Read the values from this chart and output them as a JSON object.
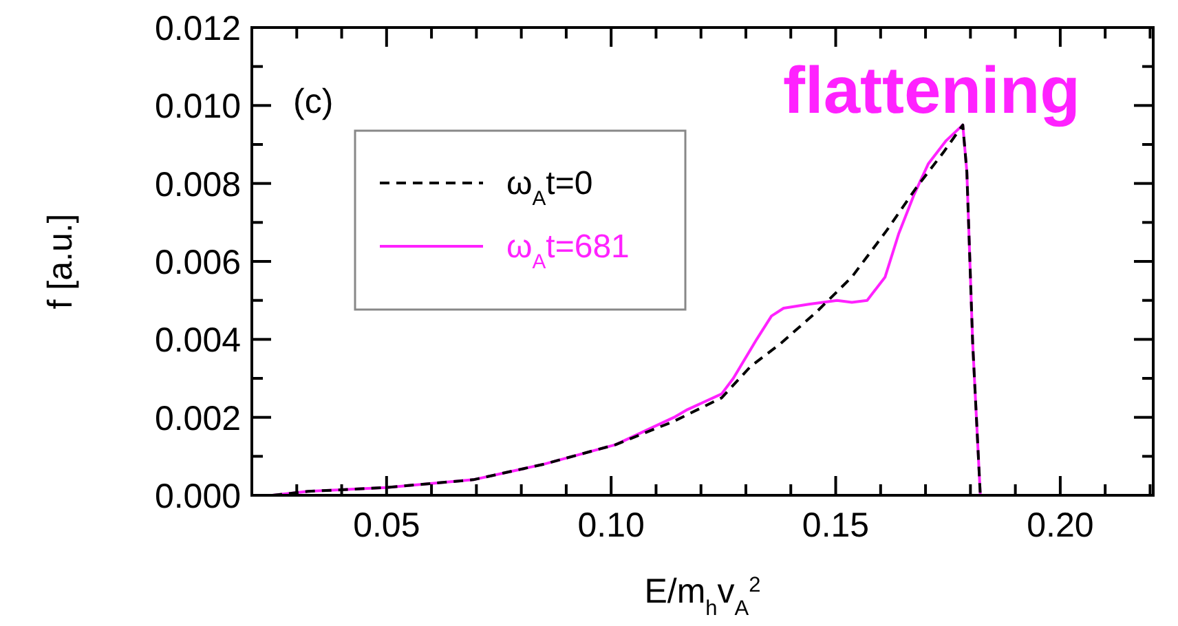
{
  "chart_data": {
    "type": "line",
    "xlabel": "E/m$_{h}$v$_{A}$$^{2}$",
    "ylabel": "f [a.u.]",
    "annotations": [
      "(c)",
      "flattening"
    ],
    "xlim": [
      0.02,
      0.2207
    ],
    "ylim": [
      0,
      0.012
    ],
    "xticks": [
      {
        "value": 0.03,
        "label": null
      },
      {
        "value": 0.04,
        "label": null
      },
      {
        "value": 0.05,
        "label": "0.05"
      },
      {
        "value": 0.06,
        "label": null
      },
      {
        "value": 0.07,
        "label": null
      },
      {
        "value": 0.08,
        "label": null
      },
      {
        "value": 0.09,
        "label": null
      },
      {
        "value": 0.1,
        "label": "0.10"
      },
      {
        "value": 0.11,
        "label": null
      },
      {
        "value": 0.12,
        "label": null
      },
      {
        "value": 0.13,
        "label": null
      },
      {
        "value": 0.14,
        "label": null
      },
      {
        "value": 0.15,
        "label": "0.15"
      },
      {
        "value": 0.16,
        "label": null
      },
      {
        "value": 0.17,
        "label": null
      },
      {
        "value": 0.18,
        "label": null
      },
      {
        "value": 0.19,
        "label": null
      },
      {
        "value": 0.2,
        "label": "0.20"
      },
      {
        "value": 0.21,
        "label": null
      },
      {
        "value": 0.22,
        "label": null
      }
    ],
    "yticks": [
      {
        "value": 0,
        "label": "0.000"
      },
      {
        "value": 0.001,
        "label": null
      },
      {
        "value": 0.002,
        "label": "0.002"
      },
      {
        "value": 0.003,
        "label": null
      },
      {
        "value": 0.004,
        "label": "0.004"
      },
      {
        "value": 0.005,
        "label": null
      },
      {
        "value": 0.006,
        "label": "0.006"
      },
      {
        "value": 0.007,
        "label": null
      },
      {
        "value": 0.008,
        "label": "0.008"
      },
      {
        "value": 0.009,
        "label": null
      },
      {
        "value": 0.01,
        "label": "0.010"
      },
      {
        "value": 0.011,
        "label": null
      },
      {
        "value": 0.012,
        "label": "0.012"
      }
    ],
    "grid": false,
    "legend": "top left",
    "series": [
      {
        "name": "ω$_{A}$t=0",
        "color": "#000000",
        "line_style": "dashed",
        "x": [
          0.0246,
          0.0325,
          0.05,
          0.0693,
          0.0851,
          0.101,
          0.114,
          0.1246,
          0.131,
          0.1378,
          0.1457,
          0.1536,
          0.1614,
          0.168,
          0.174,
          0.1783,
          0.1792,
          0.1805,
          0.1822
        ],
        "values": [
          0,
          0.0001,
          0.0002,
          0.0004,
          0.0008,
          0.0013,
          0.0019,
          0.0025,
          0.0033,
          0.0039,
          0.0047,
          0.0056,
          0.0068,
          0.0079,
          0.0088,
          0.0095,
          0.0083,
          0.0039,
          0
        ]
      },
      {
        "name": "ω$_{A}$t=681",
        "color": "#ff22ff",
        "line_style": "solid",
        "x": [
          0.0246,
          0.0325,
          0.05,
          0.0693,
          0.0851,
          0.101,
          0.114,
          0.117,
          0.1246,
          0.1272,
          0.1324,
          0.1357,
          0.1384,
          0.144,
          0.1503,
          0.1536,
          0.157,
          0.161,
          0.164,
          0.1674,
          0.1706,
          0.1746,
          0.1783,
          0.1792,
          0.1805,
          0.1822
        ],
        "values": [
          0,
          0.0001,
          0.0002,
          0.0004,
          0.0008,
          0.0013,
          0.002,
          0.0022,
          0.0026,
          0.003,
          0.004,
          0.0046,
          0.0048,
          0.0049,
          0.005,
          0.00495,
          0.005,
          0.0056,
          0.0067,
          0.0077,
          0.0085,
          0.0091,
          0.0095,
          0.0083,
          0.0039,
          0
        ]
      }
    ]
  }
}
